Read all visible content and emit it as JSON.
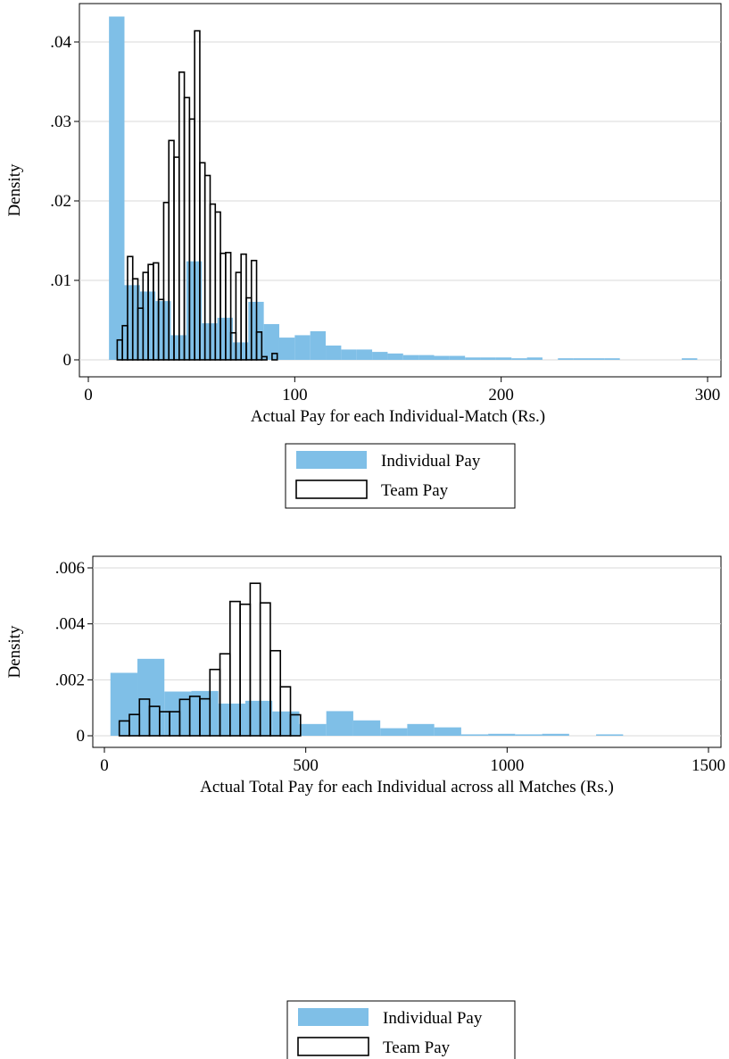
{
  "chart_data": [
    {
      "type": "histogram",
      "xlabel": "Actual Pay for each Individual-Match (Rs.)",
      "ylabel": "Density",
      "xlim": [
        0,
        300
      ],
      "ylim": [
        0,
        0.044
      ],
      "xticks": [
        0,
        100,
        200,
        300
      ],
      "xtick_labels": [
        "0",
        "100",
        "200",
        "300"
      ],
      "yticks": [
        0,
        0.01,
        0.02,
        0.03,
        0.04
      ],
      "ytick_labels": [
        "0",
        ".01",
        ".02",
        ".03",
        ".04"
      ],
      "grid": true,
      "legend_position": "below",
      "colors": {
        "individual": "#7fbfe7",
        "team_edge": "#000000",
        "team_fill": "#ffffff"
      },
      "series": [
        {
          "name": "Individual Pay",
          "style": "filled",
          "bin_edges": [
            10,
            17.5,
            25,
            32.5,
            40,
            47.5,
            55,
            62.5,
            70,
            77.5,
            85,
            92.5,
            100,
            107.5,
            115,
            122.5,
            130,
            137.5,
            145,
            152.5,
            160,
            167.5,
            175,
            182.5,
            190,
            197.5,
            205,
            212.5,
            220,
            227.5,
            235,
            242.5,
            250,
            257.5,
            265,
            272.5,
            280,
            287.5,
            295
          ],
          "values": [
            0.0432,
            0.0094,
            0.0086,
            0.0074,
            0.0031,
            0.0124,
            0.0046,
            0.0053,
            0.0022,
            0.0073,
            0.0045,
            0.0028,
            0.0031,
            0.0036,
            0.0018,
            0.0013,
            0.0013,
            0.001,
            0.0008,
            0.0006,
            0.0006,
            0.0005,
            0.0005,
            0.0003,
            0.0003,
            0.0003,
            0.0002,
            0.0003,
            0.0,
            0.0002,
            0.0002,
            0.0002,
            0.0002,
            0.0,
            0.0,
            0.0,
            0.0,
            0.0002
          ]
        },
        {
          "name": "Team Pay",
          "style": "outline",
          "bin_edges": [
            14,
            16.5,
            19,
            21.5,
            24,
            26.5,
            29,
            31.5,
            34,
            36.5,
            39,
            41.5,
            44,
            46.5,
            49,
            51.5,
            54,
            56.5,
            59,
            61.5,
            64,
            66.5,
            69,
            71.5,
            74,
            76.5,
            79,
            81.5,
            84,
            86.5,
            89,
            91.5,
            94
          ],
          "values": [
            0.0025,
            0.0043,
            0.013,
            0.0102,
            0.0065,
            0.011,
            0.012,
            0.0122,
            0.0076,
            0.0198,
            0.0276,
            0.0255,
            0.0362,
            0.033,
            0.0303,
            0.0414,
            0.0248,
            0.0232,
            0.0196,
            0.0186,
            0.0134,
            0.0135,
            0.0034,
            0.011,
            0.0133,
            0.0078,
            0.0125,
            0.0035,
            0.0004,
            0.0,
            0.0008,
            0.0
          ]
        }
      ]
    },
    {
      "type": "histogram",
      "xlabel": "Actual Total Pay for each Individual across all Matches (Rs.)",
      "ylabel": "Density",
      "xlim": [
        0,
        1500
      ],
      "ylim": [
        0,
        0.0062
      ],
      "xticks": [
        0,
        500,
        1000,
        1500
      ],
      "xtick_labels": [
        "0",
        "500",
        "1000",
        "1500"
      ],
      "yticks": [
        0,
        0.002,
        0.004,
        0.006
      ],
      "ytick_labels": [
        "0",
        ".002",
        ".004",
        ".006"
      ],
      "grid": true,
      "legend_position": "below",
      "colors": {
        "individual": "#7fbfe7",
        "team_edge": "#000000",
        "team_fill": "#ffffff"
      },
      "series": [
        {
          "name": "Individual Pay",
          "style": "filled",
          "bin_edges": [
            15,
            82,
            149,
            216,
            283,
            350,
            417,
            484,
            551,
            618,
            685,
            752,
            819,
            886,
            953,
            1020,
            1087,
            1154,
            1221,
            1288,
            1355
          ],
          "values": [
            0.00225,
            0.00275,
            0.00158,
            0.0016,
            0.00115,
            0.00125,
            0.00087,
            0.00042,
            0.00088,
            0.00055,
            0.00027,
            0.00042,
            0.0003,
            5e-05,
            7e-05,
            5e-05,
            7e-05,
            0.0,
            5e-05,
            0.0
          ]
        },
        {
          "name": "Team Pay",
          "style": "outline",
          "bin_edges": [
            37,
            62,
            87,
            112,
            137,
            162,
            187,
            212,
            237,
            262,
            287,
            312,
            337,
            362,
            387,
            412,
            437,
            462,
            487
          ],
          "values": [
            0.00053,
            0.00076,
            0.00131,
            0.00105,
            0.00086,
            0.00086,
            0.0013,
            0.00141,
            0.00132,
            0.00237,
            0.00293,
            0.0048,
            0.0047,
            0.00545,
            0.00475,
            0.00304,
            0.00175,
            0.00075
          ]
        }
      ]
    }
  ]
}
